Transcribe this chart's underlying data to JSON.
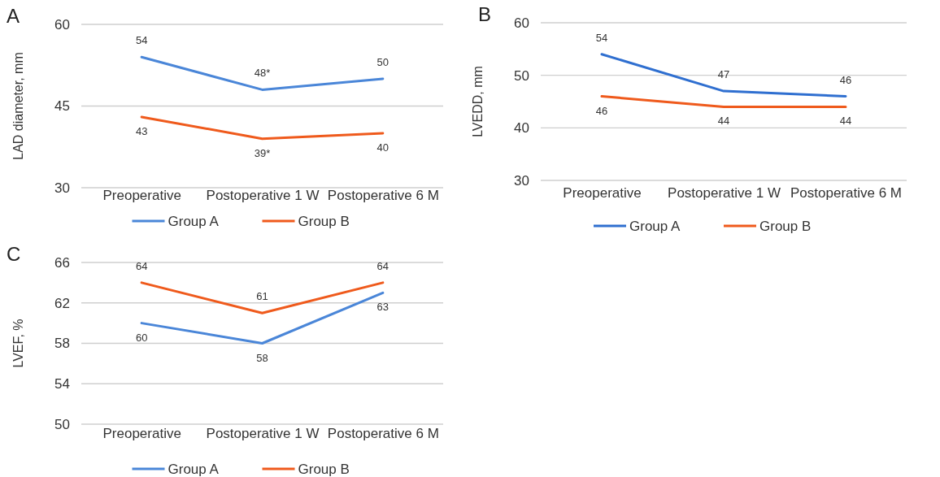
{
  "chart_data": [
    {
      "type": "line",
      "title": "A",
      "ylabel": "LAD diameter, mm",
      "categories": [
        "Preoperative",
        "Postoperative 1 W",
        "Postoperative 6 M"
      ],
      "ylim": [
        30,
        60
      ],
      "yticks": [
        30,
        45,
        60
      ],
      "grid": "y",
      "legend": "bottom",
      "marker": "none",
      "line_style": "solid",
      "series": [
        {
          "name": "Group A",
          "color": "#4a86d8",
          "values": [
            54,
            48,
            50
          ],
          "value_labels": [
            "54",
            "48*",
            "50"
          ]
        },
        {
          "name": "Group B",
          "color": "#ef5a1c",
          "values": [
            43,
            39,
            40
          ],
          "value_labels": [
            "43",
            "39*",
            "40"
          ]
        }
      ]
    },
    {
      "type": "line",
      "title": "B",
      "ylabel": "LVEDD, mm",
      "categories": [
        "Preoperative",
        "Postoperative 1 W",
        "Postoperative 6 M"
      ],
      "ylim": [
        30,
        60
      ],
      "yticks": [
        30,
        40,
        50,
        60
      ],
      "grid": "y",
      "legend": "bottom",
      "marker": "none",
      "line_style": "solid",
      "data_labels": true,
      "series": [
        {
          "name": "Group A",
          "color": "#2f6fd0",
          "values": [
            54,
            47,
            46
          ]
        },
        {
          "name": "Group B",
          "color": "#ef5a1c",
          "values": [
            46,
            44,
            44
          ]
        }
      ]
    },
    {
      "type": "line",
      "title": "C",
      "ylabel": "LVEF, %",
      "categories": [
        "Preoperative",
        "Postoperative 1 W",
        "Postoperative 6 M"
      ],
      "ylim": [
        50,
        66
      ],
      "yticks": [
        50,
        54,
        58,
        62,
        66
      ],
      "grid": "y",
      "legend": "bottom",
      "marker": "none",
      "line_style": "solid",
      "data_labels": true,
      "series": [
        {
          "name": "Group A",
          "color": "#4a86d8",
          "values": [
            60,
            58,
            63
          ]
        },
        {
          "name": "Group B",
          "color": "#ef5a1c",
          "values": [
            64,
            61,
            64
          ]
        }
      ]
    }
  ]
}
